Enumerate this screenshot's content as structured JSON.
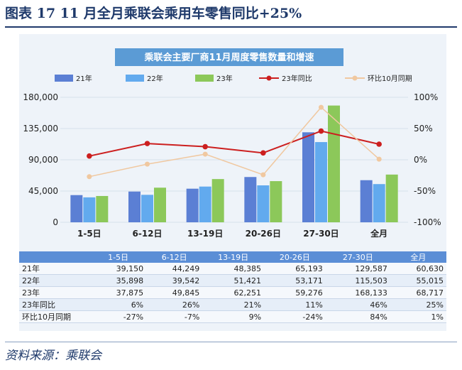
{
  "figure": {
    "title": "图表 17    11 月全月乘联会乘用车零售同比+25%",
    "source": "资料来源：乘联会"
  },
  "chart_data": {
    "type": "bar",
    "title": "乘联会主要厂商11月周度零售数量和增速",
    "categories": [
      "1-5日",
      "6-12日",
      "13-19日",
      "20-26日",
      "27-30日",
      "全月"
    ],
    "ylim": [
      0,
      180000
    ],
    "y_ticks": [
      "0",
      "45,000",
      "90,000",
      "135,000",
      "180,000"
    ],
    "y2lim": [
      -100,
      100
    ],
    "y2_ticks": [
      "-100%",
      "-50%",
      "0%",
      "50%",
      "100%"
    ],
    "series": [
      {
        "name": "21年",
        "kind": "bar",
        "color": "#5b7fd4",
        "values": [
          39150,
          44249,
          48385,
          65193,
          129587,
          60630
        ],
        "display": [
          "39,150",
          "44,249",
          "48,385",
          "65,193",
          "129,587",
          "60,630"
        ]
      },
      {
        "name": "22年",
        "kind": "bar",
        "color": "#62aaee",
        "values": [
          35898,
          39542,
          51421,
          53171,
          115503,
          55015
        ],
        "display": [
          "35,898",
          "39,542",
          "51,421",
          "53,171",
          "115,503",
          "55,015"
        ]
      },
      {
        "name": "23年",
        "kind": "bar",
        "color": "#8cc85a",
        "values": [
          37875,
          49845,
          62251,
          59276,
          168133,
          68717
        ],
        "display": [
          "37,875",
          "49,845",
          "62,251",
          "59,276",
          "168,133",
          "68,717"
        ]
      },
      {
        "name": "23年同比",
        "kind": "line",
        "axis": "right",
        "color": "#cc1f1f",
        "values": [
          6,
          26,
          21,
          11,
          46,
          25
        ],
        "display": [
          "6%",
          "26%",
          "21%",
          "11%",
          "46%",
          "25%"
        ]
      },
      {
        "name": "环比10月同期",
        "kind": "line",
        "axis": "right",
        "color": "#f0c8a0",
        "values": [
          -27,
          -7,
          9,
          -24,
          84,
          1
        ],
        "display": [
          "-27%",
          "-7%",
          "9%",
          "-24%",
          "84%",
          "1%"
        ]
      }
    ],
    "legend_position": "top",
    "grid": true
  }
}
